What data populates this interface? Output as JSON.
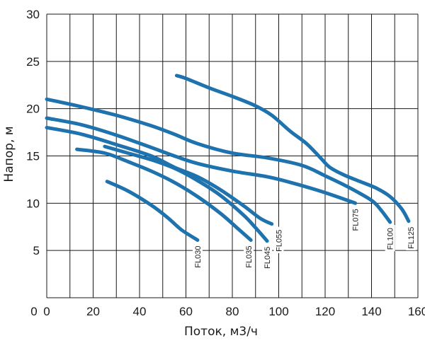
{
  "chart_data": {
    "type": "line",
    "title": "",
    "xlabel": "Поток, м3/ч",
    "ylabel": "Напор, м",
    "xlim": [
      0,
      160
    ],
    "ylim": [
      0,
      30
    ],
    "xticks": [
      "0",
      "20",
      "40",
      "60",
      "80",
      "100",
      "120",
      "140",
      "160"
    ],
    "yticks": [
      "5",
      "10",
      "15",
      "20",
      "25",
      "30"
    ],
    "grid": true,
    "line_color": "#1e73ae",
    "series": [
      {
        "name": "FL030",
        "label_at": 65,
        "points": [
          [
            26,
            12.3
          ],
          [
            35,
            11.3
          ],
          [
            45,
            9.8
          ],
          [
            52,
            8.5
          ],
          [
            58,
            7.2
          ],
          [
            65,
            6.1
          ]
        ]
      },
      {
        "name": "FL035",
        "label_at": 87,
        "points": [
          [
            13,
            15.7
          ],
          [
            25,
            15.3
          ],
          [
            35,
            14.4
          ],
          [
            45,
            13.4
          ],
          [
            55,
            12.2
          ],
          [
            65,
            10.7
          ],
          [
            75,
            8.9
          ],
          [
            82,
            7.4
          ],
          [
            88,
            6.1
          ]
        ]
      },
      {
        "name": "FL045",
        "label_at": 95,
        "points": [
          [
            25,
            16.0
          ],
          [
            35,
            15.3
          ],
          [
            45,
            14.6
          ],
          [
            55,
            13.7
          ],
          [
            65,
            12.4
          ],
          [
            75,
            10.8
          ],
          [
            85,
            8.7
          ],
          [
            90,
            7.4
          ],
          [
            95,
            6.0
          ]
        ]
      },
      {
        "name": "FL055",
        "label_at": 100,
        "points": [
          [
            0,
            18.0
          ],
          [
            15,
            17.3
          ],
          [
            30,
            16.2
          ],
          [
            45,
            15.0
          ],
          [
            55,
            13.8
          ],
          [
            65,
            12.8
          ],
          [
            75,
            11.4
          ],
          [
            85,
            9.7
          ],
          [
            92,
            8.4
          ],
          [
            97,
            7.8
          ]
        ]
      },
      {
        "name": "FL075",
        "label_at": 133,
        "points": [
          [
            0,
            19.0
          ],
          [
            15,
            18.3
          ],
          [
            30,
            17.2
          ],
          [
            45,
            15.9
          ],
          [
            55,
            15.0
          ],
          [
            65,
            14.2
          ],
          [
            80,
            13.4
          ],
          [
            95,
            12.8
          ],
          [
            105,
            12.2
          ],
          [
            115,
            11.5
          ],
          [
            125,
            10.7
          ],
          [
            133,
            10.0
          ]
        ]
      },
      {
        "name": "FL100",
        "label_at": 148,
        "points": [
          [
            0,
            21.0
          ],
          [
            15,
            20.2
          ],
          [
            30,
            19.3
          ],
          [
            45,
            18.2
          ],
          [
            55,
            17.3
          ],
          [
            65,
            16.3
          ],
          [
            80,
            15.3
          ],
          [
            95,
            14.8
          ],
          [
            110,
            14.0
          ],
          [
            120,
            12.9
          ],
          [
            130,
            11.7
          ],
          [
            140,
            10.3
          ],
          [
            144,
            9.3
          ],
          [
            148,
            8.0
          ]
        ]
      },
      {
        "name": "FL125",
        "label_at": 157,
        "points": [
          [
            56,
            23.5
          ],
          [
            60,
            23.2
          ],
          [
            70,
            22.2
          ],
          [
            80,
            21.3
          ],
          [
            90,
            20.3
          ],
          [
            97,
            19.3
          ],
          [
            105,
            17.6
          ],
          [
            112,
            16.3
          ],
          [
            118,
            14.8
          ],
          [
            122,
            13.8
          ],
          [
            128,
            13.0
          ],
          [
            135,
            12.3
          ],
          [
            142,
            11.6
          ],
          [
            148,
            10.7
          ],
          [
            153,
            9.4
          ],
          [
            156,
            8.1
          ]
        ]
      }
    ]
  }
}
